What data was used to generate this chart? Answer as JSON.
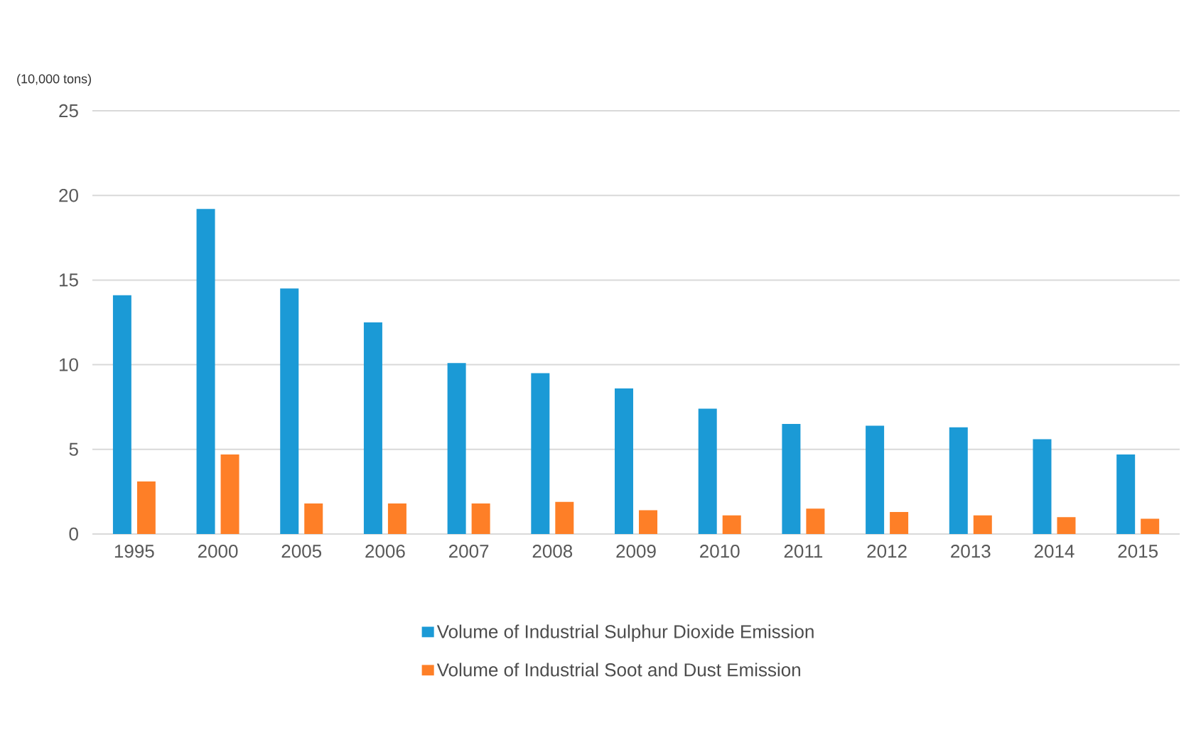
{
  "chart_data": {
    "type": "bar",
    "ylabel": "(10,000 tons)",
    "categories": [
      "1995",
      "2000",
      "2005",
      "2006",
      "2007",
      "2008",
      "2009",
      "2010",
      "2011",
      "2012",
      "2013",
      "2014",
      "2015"
    ],
    "series": [
      {
        "name": "Volume of Industrial Sulphur Dioxide Emission",
        "color": "#1b9ad6",
        "values": [
          14.1,
          19.2,
          14.5,
          12.5,
          10.1,
          9.5,
          8.6,
          7.4,
          6.5,
          6.4,
          6.3,
          5.6,
          4.7
        ]
      },
      {
        "name": "Volume of Industrial Soot and Dust Emission",
        "color": "#fe7f27",
        "values": [
          3.1,
          4.7,
          1.8,
          1.8,
          1.8,
          1.9,
          1.4,
          1.1,
          1.5,
          1.3,
          1.1,
          1.0,
          0.9
        ]
      }
    ],
    "ylim": [
      0,
      25
    ],
    "yticks": [
      0,
      5,
      10,
      15,
      20,
      25
    ],
    "grid": "y",
    "legend": "bottom"
  }
}
